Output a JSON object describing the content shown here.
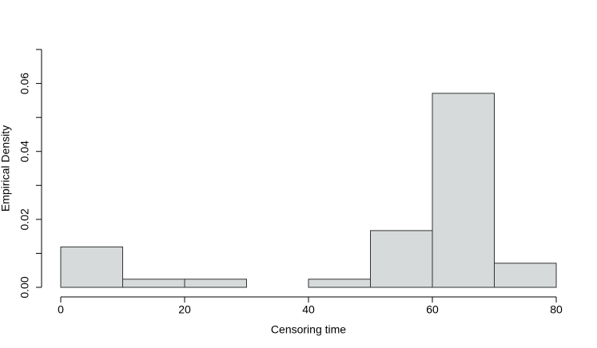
{
  "chart_data": {
    "type": "histogram",
    "xlabel": "Censoring time",
    "ylabel": "Empirical Density",
    "bins": [
      0,
      10,
      20,
      30,
      40,
      50,
      60,
      70,
      80
    ],
    "values": [
      0.0119,
      0.0024,
      0.0024,
      0,
      0.0024,
      0.0167,
      0.0571,
      0.0071
    ],
    "color": "#d6dadb",
    "edgecolor": "#333333",
    "xlim": [
      0,
      80
    ],
    "xticks": [
      0,
      20,
      40,
      60,
      80
    ],
    "ylim": [
      0,
      0.07
    ],
    "yticks": [
      {
        "value": 0,
        "label": "0.00"
      },
      {
        "value": 0.01,
        "label": null
      },
      0.02,
      {
        "value": 0.03,
        "label": null
      },
      0.04,
      {
        "value": 0.05,
        "label": null
      },
      0.06,
      {
        "value": 0.07,
        "label": null
      }
    ]
  }
}
